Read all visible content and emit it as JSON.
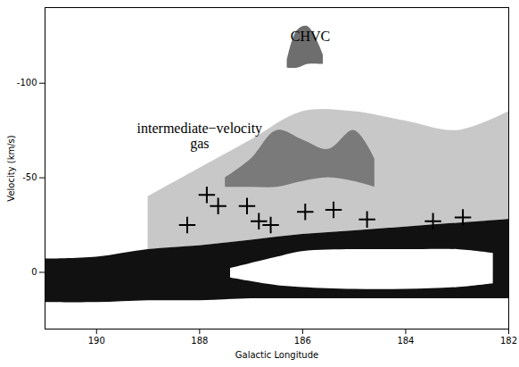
{
  "chart_data": {
    "type": "scatter",
    "x_label": "Galactic Longitude",
    "y_label": "Velocity (km/s)",
    "xlim": [
      191,
      182
    ],
    "xticks": [
      190,
      188,
      186,
      184,
      182
    ],
    "ylim": [
      30,
      -140
    ],
    "yticks": [
      -100,
      -50,
      0
    ],
    "marker": "plus",
    "color": "#000000",
    "x": [
      188.24,
      187.86,
      187.64,
      187.08,
      186.85,
      186.62,
      185.95,
      185.4,
      184.75,
      183.47,
      182.89
    ],
    "values": [
      -25,
      -41,
      -35,
      -35,
      -27,
      -25,
      -32,
      -33,
      -28,
      -27,
      -29
    ],
    "regions": [
      {
        "color": "#c8c8c8",
        "x": [
          189,
          188,
          187,
          186,
          185,
          184,
          183,
          182
        ],
        "y1": [
          -40,
          -55,
          -70,
          -85,
          -85,
          -80,
          -75,
          -85
        ],
        "y2": [
          -12,
          -14,
          -17,
          -20,
          -22,
          -24,
          -26,
          -28
        ]
      },
      {
        "color": "#7a7a7a",
        "x": [
          187.5,
          187,
          186.5,
          186,
          185.5,
          185,
          184.6
        ],
        "y1": [
          -50,
          -60,
          -75,
          -70,
          -65,
          -75,
          -60
        ],
        "y2": [
          -45,
          -45,
          -45,
          -48,
          -50,
          -48,
          -45
        ]
      },
      {
        "color": "#6e6e6e",
        "x": [
          186.3,
          186.1,
          185.9,
          185.6
        ],
        "y1": [
          -112,
          -128,
          -130,
          -115
        ],
        "y2": [
          -108,
          -108,
          -110,
          -110
        ]
      },
      {
        "color": "#111111",
        "x": [
          191,
          190,
          189,
          188,
          187,
          186,
          185,
          184,
          183,
          182
        ],
        "y1": [
          -7,
          -8,
          -12,
          -14,
          -17,
          -20,
          -22,
          -24,
          -26,
          -28
        ],
        "y2": [
          16,
          16,
          15,
          15,
          14,
          14,
          14,
          14,
          14,
          14
        ]
      },
      {
        "color": "#ffffff",
        "x": [
          187.4,
          186.5,
          186,
          185,
          184,
          183,
          182.3
        ],
        "y1": [
          -2,
          -8,
          -11,
          -12,
          -12,
          -12,
          -10
        ],
        "y2": [
          3,
          7,
          8,
          9,
          9,
          8,
          6
        ]
      }
    ],
    "annotations": [
      {
        "text": "CHVC",
        "x": 185.85,
        "y": -125
      },
      {
        "text": "intermediate−velocity gas",
        "x": 188.0,
        "y": -72
      }
    ]
  }
}
